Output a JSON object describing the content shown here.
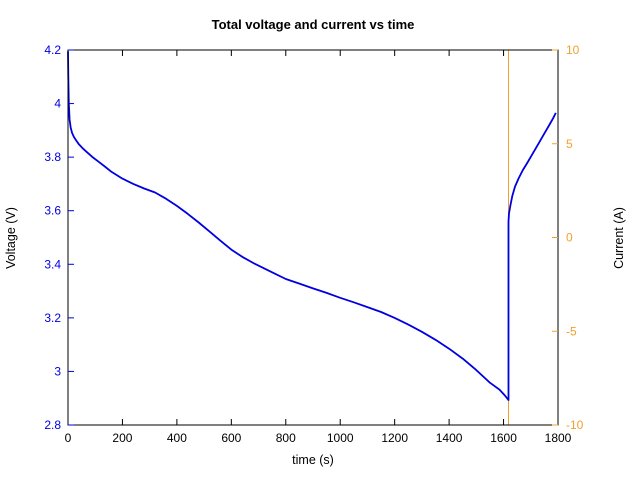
{
  "title": "Total voltage and current vs time",
  "x_axis": {
    "label": "time (s)",
    "tick_values": [
      0,
      200,
      400,
      600,
      800,
      1000,
      1200,
      1400,
      1600,
      1800
    ],
    "tick_labels": [
      "0",
      "200",
      "400",
      "600",
      "800",
      "1000",
      "1200",
      "1400",
      "1600",
      "1800"
    ]
  },
  "y_left_axis": {
    "label": "Voltage (V)",
    "tick_values": [
      2.8,
      3.0,
      3.2,
      3.4,
      3.6,
      3.8,
      4.0,
      4.2
    ],
    "tick_labels": [
      "2.8",
      "3",
      "3.2",
      "3.4",
      "3.6",
      "3.8",
      "4",
      "4.2"
    ],
    "color": "#0000e0"
  },
  "y_right_axis": {
    "label": "Current (A)",
    "tick_values": [
      -10,
      -5,
      0,
      5,
      10
    ],
    "tick_labels": [
      "-10",
      "-5",
      "0",
      "5",
      "10"
    ],
    "color": "#f0a030"
  },
  "chart_data": {
    "type": "line",
    "title": "Total voltage and current vs time",
    "xlabel": "time (s)",
    "xlim": [
      0,
      1800
    ],
    "grid": false,
    "legend": "none",
    "series": [
      {
        "name": "voltage",
        "axis": "left",
        "ylabel": "Voltage (V)",
        "ylim": [
          2.8,
          4.2
        ],
        "color": "#0000e0",
        "line_width": 1.8,
        "x": [
          0,
          1,
          3,
          6,
          10,
          15,
          22,
          30,
          40,
          55,
          70,
          90,
          110,
          135,
          160,
          200,
          240,
          280,
          320,
          360,
          400,
          440,
          480,
          520,
          560,
          600,
          640,
          680,
          720,
          760,
          800,
          850,
          900,
          950,
          1000,
          1050,
          1100,
          1150,
          1200,
          1250,
          1300,
          1350,
          1400,
          1450,
          1500,
          1550,
          1585,
          1605,
          1618,
          1618,
          1620,
          1625,
          1632,
          1642,
          1655,
          1670,
          1688,
          1708,
          1728,
          1748,
          1768,
          1782,
          1792
        ],
        "y": [
          4.195,
          4.1,
          4.0,
          3.94,
          3.91,
          3.89,
          3.875,
          3.862,
          3.848,
          3.832,
          3.818,
          3.8,
          3.785,
          3.765,
          3.745,
          3.72,
          3.7,
          3.683,
          3.668,
          3.645,
          3.618,
          3.588,
          3.556,
          3.522,
          3.488,
          3.455,
          3.428,
          3.405,
          3.385,
          3.365,
          3.345,
          3.328,
          3.31,
          3.293,
          3.275,
          3.258,
          3.24,
          3.222,
          3.2,
          3.175,
          3.148,
          3.118,
          3.085,
          3.048,
          3.005,
          2.958,
          2.932,
          2.91,
          2.893,
          3.56,
          3.59,
          3.62,
          3.655,
          3.69,
          3.72,
          3.75,
          3.78,
          3.815,
          3.85,
          3.885,
          3.92,
          3.945,
          3.965
        ]
      },
      {
        "name": "current",
        "axis": "right",
        "ylabel": "Current (A)",
        "ylim": [
          -10,
          10
        ],
        "color": "#f0a030",
        "line_width": 1,
        "x": [
          0,
          1618,
          1618,
          1800
        ],
        "y": [
          10,
          10,
          -10,
          -10
        ]
      }
    ]
  }
}
